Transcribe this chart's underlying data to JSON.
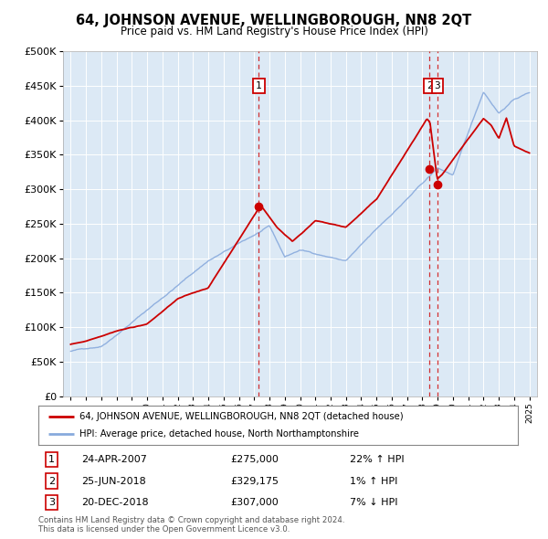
{
  "title": "64, JOHNSON AVENUE, WELLINGBOROUGH, NN8 2QT",
  "subtitle": "Price paid vs. HM Land Registry's House Price Index (HPI)",
  "legend_line1": "64, JOHNSON AVENUE, WELLINGBOROUGH, NN8 2QT (detached house)",
  "legend_line2": "HPI: Average price, detached house, North Northamptonshire",
  "footer1": "Contains HM Land Registry data © Crown copyright and database right 2024.",
  "footer2": "This data is licensed under the Open Government Licence v3.0.",
  "transactions": [
    {
      "num": "1",
      "date": "24-APR-2007",
      "price": "£275,000",
      "pct": "22% ↑ HPI",
      "year": 2007.31
    },
    {
      "num": "2",
      "date": "25-JUN-2018",
      "price": "£329,175",
      "pct": "1% ↑ HPI",
      "year": 2018.48
    },
    {
      "num": "3",
      "date": "20-DEC-2018",
      "price": "£307,000",
      "pct": "7% ↓ HPI",
      "year": 2018.97
    }
  ],
  "red_color": "#cc0000",
  "blue_color": "#88aadd",
  "plot_bg": "#dce9f5",
  "ylim": [
    0,
    500000
  ],
  "yticks": [
    0,
    50000,
    100000,
    150000,
    200000,
    250000,
    300000,
    350000,
    400000,
    450000,
    500000
  ],
  "xlim_start": 1994.5,
  "xlim_end": 2025.5
}
